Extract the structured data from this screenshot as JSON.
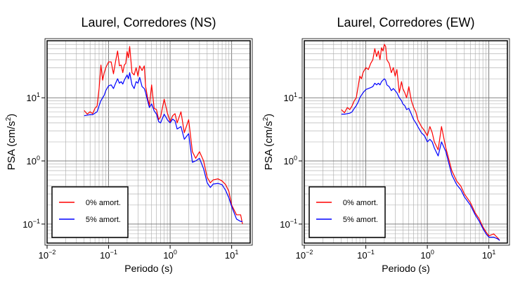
{
  "chart_data": [
    {
      "type": "line",
      "title": "Laurel, Corredores (NS)",
      "xlabel": "Periodo (s)",
      "ylabel_main": "PSA (cm/s",
      "ylabel_sup": "2",
      "ylabel_tail": ")",
      "x_scale": "log",
      "y_scale": "log",
      "xlim": [
        0.01,
        20
      ],
      "ylim": [
        0.05,
        80
      ],
      "grid": true,
      "legend_position": "bottom-left",
      "x_ticks": [
        {
          "value": 0.01,
          "base": "10",
          "exp": "−2"
        },
        {
          "value": 0.1,
          "base": "10",
          "exp": "−1"
        },
        {
          "value": 1,
          "base": "10",
          "exp": "0"
        },
        {
          "value": 10,
          "base": "10",
          "exp": "1"
        }
      ],
      "y_ticks": [
        {
          "value": 0.1,
          "base": "10",
          "exp": "−1"
        },
        {
          "value": 1,
          "base": "10",
          "exp": "0"
        },
        {
          "value": 10,
          "base": "10",
          "exp": "1"
        }
      ],
      "series": [
        {
          "name": "0% amort.",
          "color": "#ff0000",
          "x": [
            0.04,
            0.045,
            0.05,
            0.055,
            0.06,
            0.065,
            0.07,
            0.075,
            0.08,
            0.085,
            0.09,
            0.1,
            0.11,
            0.12,
            0.13,
            0.14,
            0.15,
            0.16,
            0.17,
            0.18,
            0.19,
            0.2,
            0.21,
            0.22,
            0.24,
            0.26,
            0.28,
            0.3,
            0.32,
            0.35,
            0.38,
            0.4,
            0.43,
            0.46,
            0.5,
            0.55,
            0.6,
            0.65,
            0.7,
            0.8,
            0.9,
            1.0,
            1.1,
            1.2,
            1.3,
            1.5,
            1.7,
            2.0,
            2.3,
            2.6,
            3.0,
            3.5,
            4.0,
            4.5,
            5.0,
            6.0,
            7.0,
            8.0,
            9.0,
            10.0,
            12.0,
            14.0,
            15.0
          ],
          "y": [
            6.3,
            5.5,
            6.0,
            5.6,
            6.8,
            7.4,
            14.0,
            33.0,
            19.0,
            25.0,
            30.0,
            37.0,
            37.0,
            24.0,
            38.0,
            55.0,
            32.0,
            33.0,
            25.0,
            33.0,
            35.0,
            54.0,
            43.0,
            65.0,
            25.0,
            23.0,
            30.0,
            22.0,
            32.0,
            27.0,
            32.0,
            15.0,
            10.0,
            7.5,
            16.0,
            6.8,
            6.5,
            4.5,
            5.0,
            9.5,
            5.8,
            4.2,
            5.2,
            5.6,
            4.0,
            6.0,
            2.8,
            4.5,
            1.4,
            1.1,
            1.4,
            1.0,
            0.55,
            0.45,
            0.5,
            0.52,
            0.48,
            0.42,
            0.33,
            0.2,
            0.14,
            0.14,
            0.1
          ]
        },
        {
          "name": "5% amort.",
          "color": "#0000ff",
          "x": [
            0.04,
            0.045,
            0.05,
            0.055,
            0.06,
            0.065,
            0.07,
            0.075,
            0.08,
            0.085,
            0.09,
            0.1,
            0.11,
            0.12,
            0.13,
            0.14,
            0.15,
            0.16,
            0.17,
            0.18,
            0.19,
            0.2,
            0.21,
            0.22,
            0.24,
            0.26,
            0.28,
            0.3,
            0.32,
            0.35,
            0.38,
            0.4,
            0.43,
            0.46,
            0.5,
            0.55,
            0.6,
            0.65,
            0.7,
            0.8,
            0.9,
            1.0,
            1.1,
            1.2,
            1.3,
            1.5,
            1.7,
            2.0,
            2.3,
            2.6,
            3.0,
            3.5,
            4.0,
            4.5,
            5.0,
            6.0,
            7.0,
            8.0,
            9.0,
            10.0,
            12.0,
            14.0,
            15.0
          ],
          "y": [
            5.2,
            5.3,
            5.4,
            5.4,
            5.7,
            6.0,
            7.5,
            9.0,
            10.0,
            11.0,
            13.0,
            15.5,
            16.0,
            14.0,
            17.0,
            20.0,
            17.0,
            18.0,
            16.5,
            19.0,
            21.0,
            23.0,
            20.0,
            25.0,
            16.0,
            14.0,
            18.0,
            17.0,
            21.0,
            15.0,
            14.0,
            12.0,
            9.0,
            7.0,
            8.0,
            6.2,
            5.5,
            4.2,
            4.0,
            5.5,
            4.5,
            4.0,
            4.6,
            4.3,
            3.2,
            3.5,
            2.2,
            2.7,
            0.95,
            1.0,
            1.1,
            0.75,
            0.45,
            0.38,
            0.43,
            0.44,
            0.42,
            0.34,
            0.26,
            0.19,
            0.12,
            0.11,
            0.11
          ]
        }
      ]
    },
    {
      "type": "line",
      "title": "Laurel, Corredores (EW)",
      "xlabel": "Periodo (s)",
      "ylabel_main": "PSA (cm/s",
      "ylabel_sup": "2",
      "ylabel_tail": ")",
      "x_scale": "log",
      "y_scale": "log",
      "xlim": [
        0.01,
        20
      ],
      "ylim": [
        0.05,
        80
      ],
      "grid": true,
      "legend_position": "bottom-left",
      "x_ticks": [
        {
          "value": 0.01,
          "base": "10",
          "exp": "−2"
        },
        {
          "value": 0.1,
          "base": "10",
          "exp": "−1"
        },
        {
          "value": 1,
          "base": "10",
          "exp": "0"
        },
        {
          "value": 10,
          "base": "10",
          "exp": "1"
        }
      ],
      "y_ticks": [
        {
          "value": 0.1,
          "base": "10",
          "exp": "−1"
        },
        {
          "value": 1,
          "base": "10",
          "exp": "0"
        },
        {
          "value": 10,
          "base": "10",
          "exp": "1"
        }
      ],
      "series": [
        {
          "name": "0% amort.",
          "color": "#ff0000",
          "x": [
            0.04,
            0.045,
            0.05,
            0.055,
            0.06,
            0.065,
            0.07,
            0.075,
            0.08,
            0.085,
            0.09,
            0.1,
            0.11,
            0.12,
            0.13,
            0.14,
            0.15,
            0.16,
            0.17,
            0.18,
            0.19,
            0.2,
            0.21,
            0.22,
            0.24,
            0.26,
            0.28,
            0.3,
            0.32,
            0.35,
            0.38,
            0.4,
            0.43,
            0.46,
            0.5,
            0.55,
            0.6,
            0.65,
            0.7,
            0.8,
            0.9,
            1.0,
            1.1,
            1.2,
            1.3,
            1.5,
            1.7,
            2.0,
            2.5,
            3.0,
            3.5,
            4.0,
            5.0,
            6.0,
            7.0,
            8.0,
            9.0,
            10.0,
            12.0,
            14.0,
            15.0
          ],
          "y": [
            6.5,
            5.8,
            7.0,
            6.5,
            7.5,
            9.0,
            10.0,
            15.0,
            22.0,
            20.0,
            25.0,
            30.0,
            28.0,
            35.0,
            40.0,
            60.0,
            45.0,
            55.0,
            40.0,
            62.0,
            55.0,
            70.0,
            65.0,
            40.0,
            35.0,
            25.0,
            30.0,
            22.0,
            28.0,
            12.0,
            18.0,
            14.0,
            12.0,
            10.0,
            15.0,
            9.0,
            7.0,
            6.0,
            4.5,
            3.5,
            3.0,
            2.5,
            3.5,
            2.8,
            2.0,
            1.5,
            3.5,
            1.6,
            0.7,
            0.48,
            0.4,
            0.3,
            0.22,
            0.15,
            0.12,
            0.09,
            0.075,
            0.065,
            0.07,
            0.06,
            0.055
          ]
        },
        {
          "name": "5% amort.",
          "color": "#0000ff",
          "x": [
            0.04,
            0.045,
            0.05,
            0.055,
            0.06,
            0.065,
            0.07,
            0.075,
            0.08,
            0.085,
            0.09,
            0.1,
            0.11,
            0.12,
            0.13,
            0.14,
            0.15,
            0.16,
            0.17,
            0.18,
            0.19,
            0.2,
            0.21,
            0.22,
            0.24,
            0.26,
            0.28,
            0.3,
            0.32,
            0.35,
            0.38,
            0.4,
            0.43,
            0.46,
            0.5,
            0.55,
            0.6,
            0.65,
            0.7,
            0.8,
            0.9,
            1.0,
            1.1,
            1.2,
            1.3,
            1.5,
            1.7,
            2.0,
            2.5,
            3.0,
            3.5,
            4.0,
            5.0,
            6.0,
            7.0,
            8.0,
            9.0,
            10.0,
            12.0,
            14.0,
            15.0
          ],
          "y": [
            5.5,
            5.5,
            5.6,
            5.7,
            6.0,
            6.8,
            7.5,
            8.5,
            10.0,
            11.0,
            12.0,
            13.5,
            14.0,
            14.5,
            15.0,
            17.0,
            16.0,
            17.0,
            16.0,
            18.0,
            19.0,
            20.0,
            19.0,
            16.0,
            15.0,
            13.0,
            14.0,
            13.0,
            12.0,
            10.0,
            9.0,
            8.0,
            7.5,
            6.5,
            6.8,
            5.5,
            4.5,
            4.0,
            3.5,
            2.8,
            2.5,
            2.0,
            2.2,
            2.0,
            1.6,
            1.2,
            2.0,
            1.4,
            0.6,
            0.42,
            0.35,
            0.27,
            0.2,
            0.14,
            0.11,
            0.085,
            0.07,
            0.062,
            0.062,
            0.058,
            0.055
          ]
        }
      ]
    }
  ]
}
